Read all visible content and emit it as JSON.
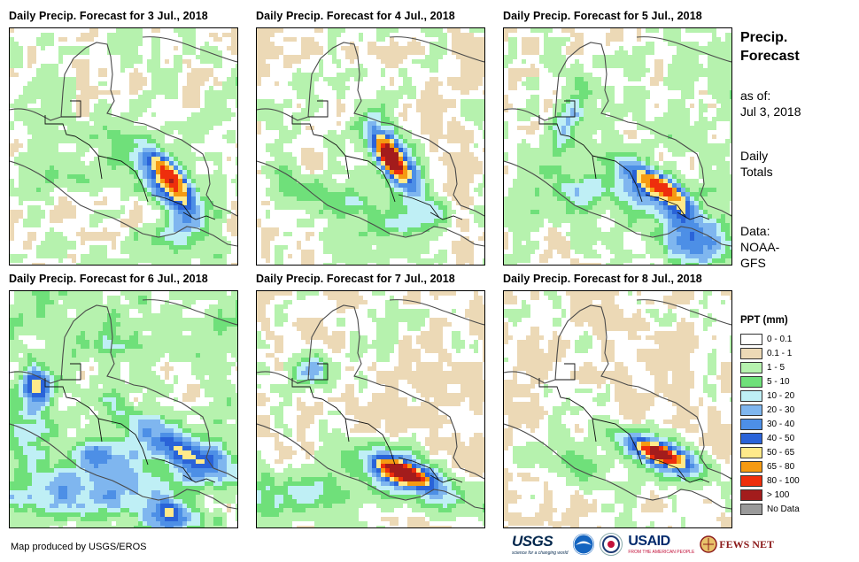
{
  "panels": [
    {
      "title": "Daily Precip. Forecast for 3 Jul., 2018"
    },
    {
      "title": "Daily Precip. Forecast for 4 Jul., 2018"
    },
    {
      "title": "Daily Precip. Forecast for 5 Jul., 2018"
    },
    {
      "title": "Daily Precip. Forecast for 6 Jul., 2018"
    },
    {
      "title": "Daily Precip. Forecast for 7 Jul., 2018"
    },
    {
      "title": "Daily Precip. Forecast for 8 Jul., 2018"
    }
  ],
  "sidebar": {
    "title_line1": "Precip.",
    "title_line2": "Forecast",
    "asof_label": "as of:",
    "asof_date": "Jul 3, 2018",
    "totals_line1": "Daily",
    "totals_line2": "Totals",
    "data_label": "Data:",
    "data_line1": "NOAA-",
    "data_line2": "GFS"
  },
  "legend": {
    "title": "PPT (mm)",
    "items": [
      {
        "label": "0 - 0.1",
        "color": "#ffffff"
      },
      {
        "label": "0.1 - 1",
        "color": "#ecd9b6"
      },
      {
        "label": "1 - 5",
        "color": "#b6f2ae"
      },
      {
        "label": "5 - 10",
        "color": "#6fe07a"
      },
      {
        "label": "10 - 20",
        "color": "#bfeff5"
      },
      {
        "label": "20 - 30",
        "color": "#7fb6ef"
      },
      {
        "label": "30 - 40",
        "color": "#4d8fe6"
      },
      {
        "label": "40 - 50",
        "color": "#2a63d8"
      },
      {
        "label": "50 - 65",
        "color": "#ffe98a"
      },
      {
        "label": "65 - 80",
        "color": "#f59a12"
      },
      {
        "label": "80 - 100",
        "color": "#ee2e0c"
      },
      {
        "label": "> 100",
        "color": "#a31c1c"
      },
      {
        "label": "No Data",
        "color": "#9a9a9a"
      }
    ]
  },
  "footer": {
    "credit": "Map produced by USGS/EROS"
  },
  "logos": {
    "usgs": "USGS",
    "usgs_tagline": "science for a changing world",
    "usaid": "USAID",
    "usaid_tagline": "FROM THE AMERICAN PEOPLE",
    "fews": "FEWS NET"
  }
}
